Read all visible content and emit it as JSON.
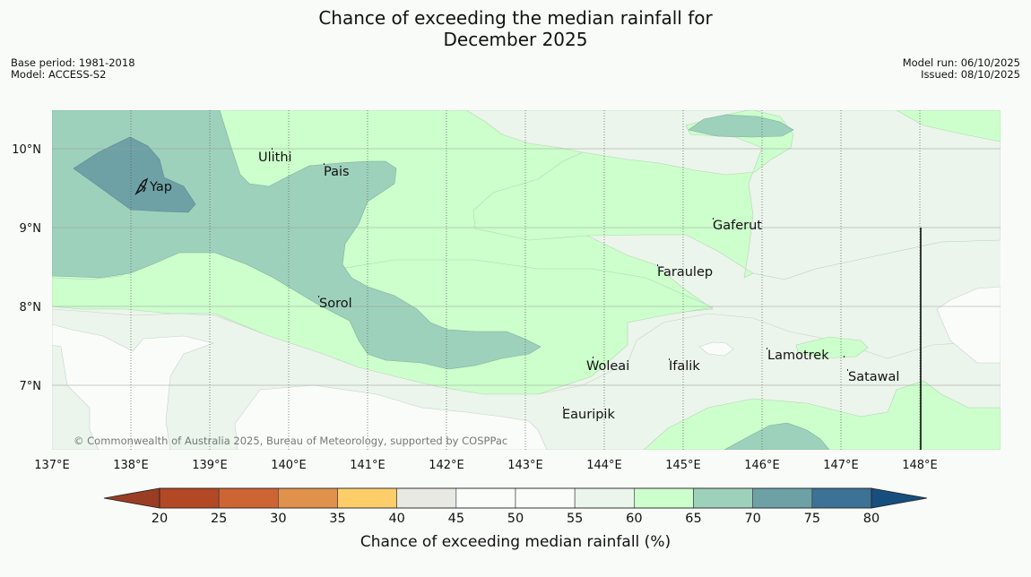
{
  "title_line1": "Chance of exceeding the median rainfall for",
  "title_line2": "December 2025",
  "meta_left": {
    "base_period": "Base period: 1981-2018",
    "model": "Model: ACCESS-S2"
  },
  "meta_right": {
    "model_run": "Model run: 06/10/2025",
    "issued": "Issued: 08/10/2025"
  },
  "map": {
    "lat_labels": [
      "10°N",
      "9°N",
      "8°N",
      "7°N"
    ],
    "lon_labels": [
      "137°E",
      "138°E",
      "139°E",
      "140°E",
      "141°E",
      "142°E",
      "143°E",
      "144°E",
      "145°E",
      "146°E",
      "147°E",
      "148°E"
    ],
    "places": [
      "Yap",
      "Ulithi",
      "Pais",
      "Sorol",
      "Gaferut",
      "Faraulep",
      "Woleai",
      "Ifalik",
      "Lamotrek",
      "Satawal",
      "Eauripik"
    ],
    "copyright": "© Commonwealth of Australia 2025, Bureau of Meteorology, supported by COSPPac"
  },
  "legend": {
    "ticks": [
      "20",
      "25",
      "30",
      "35",
      "40",
      "45",
      "50",
      "55",
      "60",
      "65",
      "70",
      "75",
      "80"
    ],
    "label": "Chance of exceeding median rainfall (%)",
    "colors": [
      "#b34825",
      "#cd6434",
      "#e0914c",
      "#fdcd6a",
      "#e9e9e4",
      "#fafcfa",
      "#fafcfa",
      "#ebf5eb",
      "#ccffcc",
      "#9ed1bb",
      "#6ea1a6",
      "#3b7296"
    ],
    "under_color": "#9a3d22",
    "over_color": "#174e7e"
  }
}
